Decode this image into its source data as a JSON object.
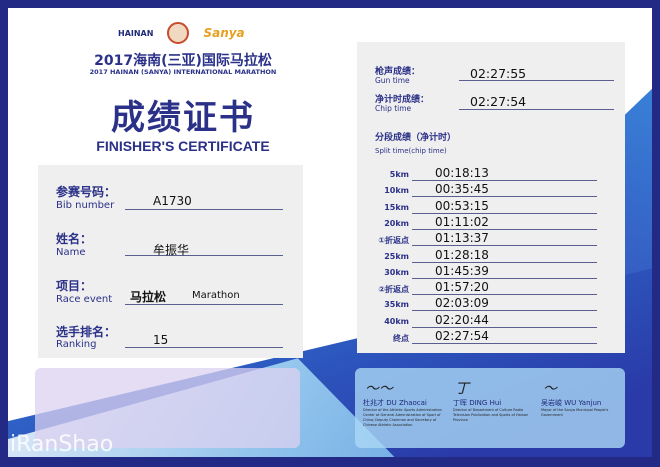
{
  "header": {
    "logos": [
      "HAINAN",
      "Sanya"
    ],
    "title_cn": "2017海南(三亚)国际马拉松",
    "title_en": "2017 HAINAN (SANYA) INTERNATIONAL MARATHON",
    "cert_cn": "成绩证书",
    "cert_en": "FINISHER'S CERTIFICATE"
  },
  "runner": [
    {
      "cn": "参赛号码：",
      "en": "Bib number",
      "value": "A1730"
    },
    {
      "cn": "姓名：",
      "en": "Name",
      "value": "牟振华"
    },
    {
      "cn": "项目：",
      "en": "Race event",
      "value": "马拉松",
      "value_en": "Marathon"
    },
    {
      "cn": "选手排名：",
      "en": "Ranking",
      "value": "15"
    }
  ],
  "results": {
    "gun_cn": "枪声成绩：",
    "gun_en": "Gun time",
    "gun": "02:27:55",
    "chip_cn": "净计时成绩：",
    "chip_en": "Chip time",
    "chip": "02:27:54",
    "split_cn": "分段成绩（净计时）",
    "split_en": "Split time(chip time)",
    "splits": [
      {
        "label": "5km",
        "time": "00:18:13"
      },
      {
        "label": "10km",
        "time": "00:35:45"
      },
      {
        "label": "15km",
        "time": "00:53:15"
      },
      {
        "label": "20km",
        "time": "01:11:02"
      },
      {
        "label": "①折返点",
        "time": "01:13:37"
      },
      {
        "label": "25km",
        "time": "01:28:18"
      },
      {
        "label": "30km",
        "time": "01:45:39"
      },
      {
        "label": "②折返点",
        "time": "01:57:20"
      },
      {
        "label": "35km",
        "time": "02:03:09"
      },
      {
        "label": "40km",
        "time": "02:20:44"
      },
      {
        "label": "终点",
        "time": "02:27:54"
      }
    ]
  },
  "signatories": [
    {
      "name": "杜兆才 DU Zhaocai",
      "title": "Director of the Athletic Sports Administration Center at General Administration of Sport of China; Deputy Chairman and Secretary of Chinese Athletic Association"
    },
    {
      "name": "丁晖 DING Hui",
      "title": "Director of Department of Culture Radio Television Publication and Sports of Hainan Province"
    },
    {
      "name": "吴岩峻 WU Yanjun",
      "title": "Mayor of the Sanya Municipal People's Government"
    }
  ],
  "watermark": "iRanShao",
  "colors": {
    "navy": "#2b3188",
    "frame": "#232a86"
  }
}
